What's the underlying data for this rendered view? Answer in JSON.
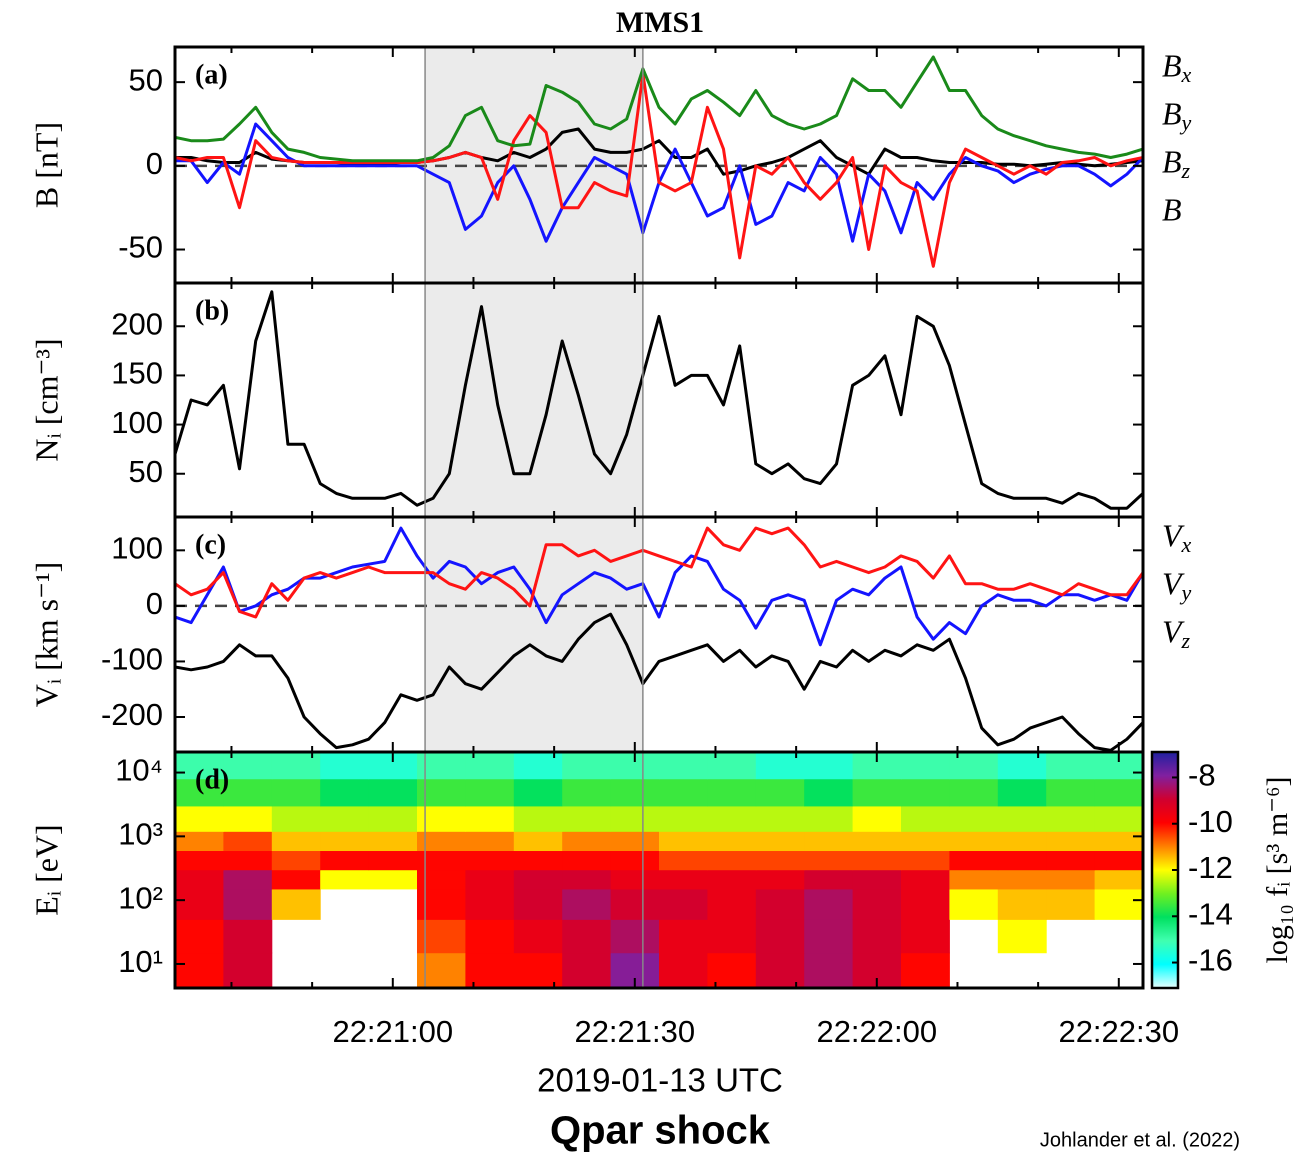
{
  "caption": "Qpar shock",
  "credit": "Johlander et al. (2022)",
  "chart_data": [
    {
      "type": "line",
      "title": "MMS1",
      "label": "(a)",
      "ylabel": "B [nT]",
      "legend": true,
      "zeroline": true,
      "xlim": [
        "22:20:33",
        "22:22:33"
      ],
      "xticks": [
        "22:21:00",
        "22:21:30",
        "22:22:00",
        "22:22:30"
      ],
      "xminorticks": [
        "22:20:40",
        "22:20:50",
        "22:21:10",
        "22:21:20",
        "22:21:40",
        "22:21:50",
        "22:22:10",
        "22:22:20"
      ],
      "span": [
        "22:21:04",
        "22:21:31"
      ],
      "ylim": [
        -70,
        71
      ],
      "yticks": [
        -50,
        0,
        50
      ],
      "x": [
        "22:20:33",
        "22:20:35",
        "22:20:37",
        "22:20:39",
        "22:20:41",
        "22:20:43",
        "22:20:45",
        "22:20:47",
        "22:20:49",
        "22:20:51",
        "22:20:53",
        "22:20:55",
        "22:20:57",
        "22:20:59",
        "22:21:01",
        "22:21:03",
        "22:21:05",
        "22:21:07",
        "22:21:09",
        "22:21:11",
        "22:21:13",
        "22:21:15",
        "22:21:17",
        "22:21:19",
        "22:21:21",
        "22:21:23",
        "22:21:25",
        "22:21:27",
        "22:21:29",
        "22:21:31",
        "22:21:33",
        "22:21:35",
        "22:21:37",
        "22:21:39",
        "22:21:41",
        "22:21:43",
        "22:21:45",
        "22:21:47",
        "22:21:49",
        "22:21:51",
        "22:21:53",
        "22:21:55",
        "22:21:57",
        "22:21:59",
        "22:22:01",
        "22:22:03",
        "22:22:05",
        "22:22:07",
        "22:22:09",
        "22:22:11",
        "22:22:13",
        "22:22:15",
        "22:22:17",
        "22:22:19",
        "22:22:21",
        "22:22:23",
        "22:22:25",
        "22:22:27",
        "22:22:29",
        "22:22:31",
        "22:22:33"
      ],
      "series": [
        {
          "name": "Bx",
          "color": "#000000",
          "values": [
            5,
            5,
            3,
            2,
            2,
            8,
            4,
            3,
            2,
            2,
            2,
            1,
            1,
            1,
            2,
            2,
            3,
            5,
            8,
            5,
            3,
            8,
            5,
            10,
            20,
            22,
            10,
            8,
            8,
            10,
            15,
            5,
            5,
            10,
            -5,
            -3,
            0,
            2,
            5,
            10,
            15,
            5,
            0,
            -5,
            10,
            5,
            5,
            3,
            2,
            2,
            2,
            1,
            1,
            0,
            1,
            2,
            1,
            0,
            1,
            2,
            3
          ]
        },
        {
          "name": "By",
          "color": "#1414ff",
          "values": [
            3,
            3,
            -10,
            2,
            -5,
            25,
            15,
            5,
            0,
            0,
            0,
            0,
            0,
            0,
            0,
            0,
            -5,
            -10,
            -38,
            -30,
            -10,
            0,
            -20,
            -45,
            -25,
            -10,
            5,
            0,
            -5,
            -40,
            -10,
            10,
            -10,
            -30,
            -25,
            0,
            -35,
            -30,
            -10,
            -15,
            5,
            -5,
            -45,
            -5,
            -15,
            -40,
            -10,
            -20,
            -5,
            5,
            0,
            -3,
            -10,
            -5,
            -2,
            0,
            0,
            -5,
            -12,
            -5,
            5
          ]
        },
        {
          "name": "Bz",
          "color": "#ff1414",
          "values": [
            5,
            3,
            5,
            5,
            -25,
            15,
            5,
            3,
            2,
            2,
            2,
            2,
            2,
            2,
            2,
            2,
            3,
            5,
            8,
            5,
            -20,
            15,
            30,
            20,
            -25,
            -25,
            -10,
            -15,
            -18,
            55,
            -10,
            -15,
            -10,
            35,
            10,
            -55,
            0,
            -5,
            5,
            -10,
            -20,
            -10,
            5,
            -50,
            0,
            -10,
            -15,
            -60,
            -10,
            10,
            5,
            0,
            -5,
            0,
            -5,
            2,
            3,
            5,
            0,
            3,
            5
          ]
        },
        {
          "name": "B",
          "color": "#1a8a1a",
          "values": [
            17,
            15,
            15,
            16,
            25,
            35,
            20,
            10,
            8,
            5,
            4,
            3,
            3,
            3,
            3,
            3,
            5,
            12,
            30,
            35,
            15,
            12,
            13,
            48,
            44,
            38,
            25,
            22,
            28,
            58,
            35,
            25,
            40,
            45,
            38,
            30,
            45,
            30,
            25,
            22,
            25,
            30,
            52,
            45,
            45,
            35,
            50,
            65,
            45,
            45,
            30,
            22,
            18,
            15,
            12,
            10,
            8,
            7,
            5,
            7,
            10
          ]
        }
      ]
    },
    {
      "type": "line",
      "label": "(b)",
      "ylabel": "Nᵢ [cm⁻³]",
      "legend": false,
      "zeroline": false,
      "xlim": [
        "22:20:33",
        "22:22:33"
      ],
      "xticks": [
        "22:21:00",
        "22:21:30",
        "22:22:00",
        "22:22:30"
      ],
      "xminorticks": [
        "22:20:40",
        "22:20:50",
        "22:21:10",
        "22:21:20",
        "22:21:40",
        "22:21:50",
        "22:22:10",
        "22:22:20"
      ],
      "span": [
        "22:21:04",
        "22:21:31"
      ],
      "ylim": [
        6,
        244
      ],
      "yticks": [
        50,
        100,
        150,
        200
      ],
      "x": [
        "22:20:33",
        "22:20:35",
        "22:20:37",
        "22:20:39",
        "22:20:41",
        "22:20:43",
        "22:20:45",
        "22:20:47",
        "22:20:49",
        "22:20:51",
        "22:20:53",
        "22:20:55",
        "22:20:57",
        "22:20:59",
        "22:21:01",
        "22:21:03",
        "22:21:05",
        "22:21:07",
        "22:21:09",
        "22:21:11",
        "22:21:13",
        "22:21:15",
        "22:21:17",
        "22:21:19",
        "22:21:21",
        "22:21:23",
        "22:21:25",
        "22:21:27",
        "22:21:29",
        "22:21:31",
        "22:21:33",
        "22:21:35",
        "22:21:37",
        "22:21:39",
        "22:21:41",
        "22:21:43",
        "22:21:45",
        "22:21:47",
        "22:21:49",
        "22:21:51",
        "22:21:53",
        "22:21:55",
        "22:21:57",
        "22:21:59",
        "22:22:01",
        "22:22:03",
        "22:22:05",
        "22:22:07",
        "22:22:09",
        "22:22:11",
        "22:22:13",
        "22:22:15",
        "22:22:17",
        "22:22:19",
        "22:22:21",
        "22:22:23",
        "22:22:25",
        "22:22:27",
        "22:22:29",
        "22:22:31",
        "22:22:33"
      ],
      "color": "#000000",
      "values": [
        70,
        125,
        120,
        140,
        55,
        185,
        235,
        80,
        80,
        40,
        30,
        25,
        25,
        25,
        30,
        18,
        25,
        50,
        140,
        220,
        120,
        50,
        50,
        110,
        185,
        130,
        70,
        50,
        90,
        150,
        210,
        140,
        150,
        150,
        120,
        180,
        60,
        50,
        60,
        45,
        40,
        60,
        140,
        150,
        170,
        110,
        210,
        200,
        160,
        100,
        40,
        30,
        25,
        25,
        25,
        20,
        30,
        25,
        15,
        15,
        30
      ]
    },
    {
      "type": "line",
      "label": "(c)",
      "ylabel": "Vᵢ [km s⁻¹]",
      "legend": true,
      "zeroline": true,
      "xlim": [
        "22:20:33",
        "22:22:33"
      ],
      "xticks": [
        "22:21:00",
        "22:21:30",
        "22:22:00",
        "22:22:30"
      ],
      "xminorticks": [
        "22:20:40",
        "22:20:50",
        "22:21:10",
        "22:21:20",
        "22:21:40",
        "22:21:50",
        "22:22:10",
        "22:22:20"
      ],
      "span": [
        "22:21:04",
        "22:21:31"
      ],
      "ylim": [
        -263,
        160
      ],
      "yticks": [
        -200,
        -100,
        0,
        100
      ],
      "x": [
        "22:20:33",
        "22:20:35",
        "22:20:37",
        "22:20:39",
        "22:20:41",
        "22:20:43",
        "22:20:45",
        "22:20:47",
        "22:20:49",
        "22:20:51",
        "22:20:53",
        "22:20:55",
        "22:20:57",
        "22:20:59",
        "22:21:01",
        "22:21:03",
        "22:21:05",
        "22:21:07",
        "22:21:09",
        "22:21:11",
        "22:21:13",
        "22:21:15",
        "22:21:17",
        "22:21:19",
        "22:21:21",
        "22:21:23",
        "22:21:25",
        "22:21:27",
        "22:21:29",
        "22:21:31",
        "22:21:33",
        "22:21:35",
        "22:21:37",
        "22:21:39",
        "22:21:41",
        "22:21:43",
        "22:21:45",
        "22:21:47",
        "22:21:49",
        "22:21:51",
        "22:21:53",
        "22:21:55",
        "22:21:57",
        "22:21:59",
        "22:22:01",
        "22:22:03",
        "22:22:05",
        "22:22:07",
        "22:22:09",
        "22:22:11",
        "22:22:13",
        "22:22:15",
        "22:22:17",
        "22:22:19",
        "22:22:21",
        "22:22:23",
        "22:22:25",
        "22:22:27",
        "22:22:29",
        "22:22:31",
        "22:22:33"
      ],
      "series": [
        {
          "name": "Vx",
          "color": "#000000",
          "values": [
            -110,
            -115,
            -110,
            -100,
            -70,
            -90,
            -90,
            -130,
            -200,
            -230,
            -255,
            -250,
            -240,
            -210,
            -160,
            -170,
            -160,
            -110,
            -140,
            -150,
            -120,
            -90,
            -70,
            -90,
            -100,
            -60,
            -30,
            -15,
            -70,
            -140,
            -100,
            -90,
            -80,
            -70,
            -100,
            -80,
            -110,
            -90,
            -100,
            -150,
            -100,
            -110,
            -80,
            -100,
            -80,
            -90,
            -70,
            -80,
            -60,
            -130,
            -220,
            -250,
            -240,
            -220,
            -210,
            -200,
            -230,
            -255,
            -260,
            -240,
            -210
          ]
        },
        {
          "name": "Vy",
          "color": "#1414ff",
          "values": [
            -20,
            -30,
            20,
            70,
            -10,
            0,
            20,
            30,
            50,
            50,
            60,
            70,
            75,
            80,
            140,
            90,
            50,
            80,
            70,
            40,
            60,
            70,
            30,
            -30,
            20,
            40,
            60,
            50,
            30,
            40,
            -20,
            60,
            90,
            80,
            30,
            10,
            -40,
            10,
            20,
            10,
            -70,
            10,
            30,
            20,
            50,
            70,
            -20,
            -60,
            -30,
            -50,
            0,
            20,
            10,
            10,
            0,
            20,
            20,
            10,
            20,
            10,
            60
          ]
        },
        {
          "name": "Vz",
          "color": "#ff1414",
          "values": [
            40,
            20,
            30,
            60,
            -10,
            -20,
            40,
            10,
            50,
            60,
            50,
            60,
            70,
            60,
            60,
            60,
            60,
            40,
            30,
            60,
            50,
            30,
            0,
            110,
            110,
            90,
            100,
            80,
            90,
            100,
            90,
            80,
            70,
            140,
            110,
            100,
            140,
            130,
            140,
            110,
            70,
            80,
            70,
            60,
            70,
            90,
            80,
            50,
            90,
            40,
            40,
            30,
            30,
            40,
            30,
            20,
            40,
            30,
            20,
            20,
            60
          ]
        }
      ]
    },
    {
      "type": "heatmap",
      "label": "(d)",
      "ylabel": "Eᵢ [eV]",
      "xlabel": "2019-01-13 UTC",
      "xticklabels": true,
      "xlim": [
        "22:20:33",
        "22:22:33"
      ],
      "xticks": [
        "22:21:00",
        "22:21:30",
        "22:22:00",
        "22:22:30"
      ],
      "xminorticks": [
        "22:20:40",
        "22:20:50",
        "22:21:10",
        "22:21:20",
        "22:21:40",
        "22:21:50",
        "22:22:10",
        "22:22:20"
      ],
      "vlines": [
        "22:21:04",
        "22:21:31"
      ],
      "ylog": true,
      "ylim": [
        4.2,
        21000
      ],
      "yticks": [
        {
          "value": 10,
          "label": "10¹"
        },
        {
          "value": 100,
          "label": "10²"
        },
        {
          "value": 1000,
          "label": "10³"
        },
        {
          "value": 10000,
          "label": "10⁴"
        }
      ],
      "clabel": "log₁₀ fᵢ [s³ m⁻⁶]",
      "clim": [
        -17.1,
        -6.9
      ],
      "cticks": [
        -8,
        -10,
        -12,
        -14,
        -16
      ],
      "colormap": [
        "#e8ffff",
        "#00ffff",
        "#40ffb0",
        "#00e060",
        "#70f020",
        "#ffff00",
        "#ff8000",
        "#ff0000",
        "#d00030",
        "#8020a0",
        "#2020a0"
      ],
      "xbins": [
        "22:20:33",
        "22:20:39",
        "22:20:45",
        "22:20:51",
        "22:20:57",
        "22:21:03",
        "22:21:09",
        "22:21:15",
        "22:21:21",
        "22:21:27",
        "22:21:33",
        "22:21:39",
        "22:21:45",
        "22:21:51",
        "22:21:57",
        "22:22:03",
        "22:22:09",
        "22:22:15",
        "22:22:21",
        "22:22:27",
        "22:22:33"
      ],
      "ybins": [
        4.2,
        15,
        50,
        150,
        300,
        600,
        1200,
        3000,
        8000,
        21000
      ],
      "z": [
        [
          -10,
          -9,
          null,
          null,
          null,
          -11,
          -10,
          -10,
          -9,
          -8,
          -9.5,
          -10,
          -9,
          -8.5,
          -9,
          -10,
          null,
          null,
          null,
          null
        ],
        [
          -10,
          -9,
          null,
          null,
          null,
          -10.5,
          -10,
          -9.5,
          -9,
          -8.5,
          -9.5,
          -9.5,
          -9,
          -8.5,
          -9,
          -9.5,
          null,
          -12,
          null,
          null
        ],
        [
          -9.5,
          -8.5,
          -11.5,
          null,
          null,
          -10,
          -9.5,
          -9,
          -8.5,
          -9,
          -9,
          -9.5,
          -9,
          -8.5,
          -9,
          -9.5,
          -12,
          -11.5,
          -11.5,
          -12
        ],
        [
          -9.5,
          -8.5,
          -10,
          -12,
          -12,
          -10,
          -9.5,
          -9,
          -9,
          -9.5,
          -9.5,
          -9.5,
          -9.5,
          -9,
          -9,
          -9.5,
          -11,
          -11,
          -11,
          -11.5
        ],
        [
          -10,
          -10,
          -10.5,
          -10,
          -10,
          -10,
          -10,
          -10,
          -10,
          -10,
          -10.5,
          -10.5,
          -10.5,
          -10.5,
          -10.5,
          -10.5,
          -10,
          -10,
          -10,
          -10
        ],
        [
          -11,
          -10.5,
          -11.5,
          -11.5,
          -11.5,
          -11,
          -11,
          -11.5,
          -11,
          -11,
          -11.5,
          -11.5,
          -11.5,
          -11.5,
          -11.5,
          -11.5,
          -11.5,
          -11.5,
          -11.5,
          -11.5
        ],
        [
          -12,
          -12,
          -12.5,
          -12.5,
          -12.5,
          -12,
          -12,
          -12.5,
          -12.5,
          -12.5,
          -12.5,
          -12.5,
          -12.5,
          -12.5,
          -12,
          -12.5,
          -12.5,
          -12.5,
          -12.5,
          -12.5
        ],
        [
          -13.5,
          -13.5,
          -13.5,
          -14,
          -14,
          -13.5,
          -13.5,
          -14,
          -13.5,
          -13.5,
          -13.5,
          -13.5,
          -13.5,
          -14,
          -13.5,
          -13.5,
          -13.5,
          -14,
          -13.5,
          -13.5
        ],
        [
          -15,
          -15,
          -15,
          -15.5,
          -15.5,
          -15,
          -15,
          -15.5,
          -15,
          -15,
          -15,
          -15,
          -15.5,
          -15.5,
          -15,
          -15,
          -15,
          -15.5,
          -15,
          -15
        ]
      ]
    }
  ]
}
